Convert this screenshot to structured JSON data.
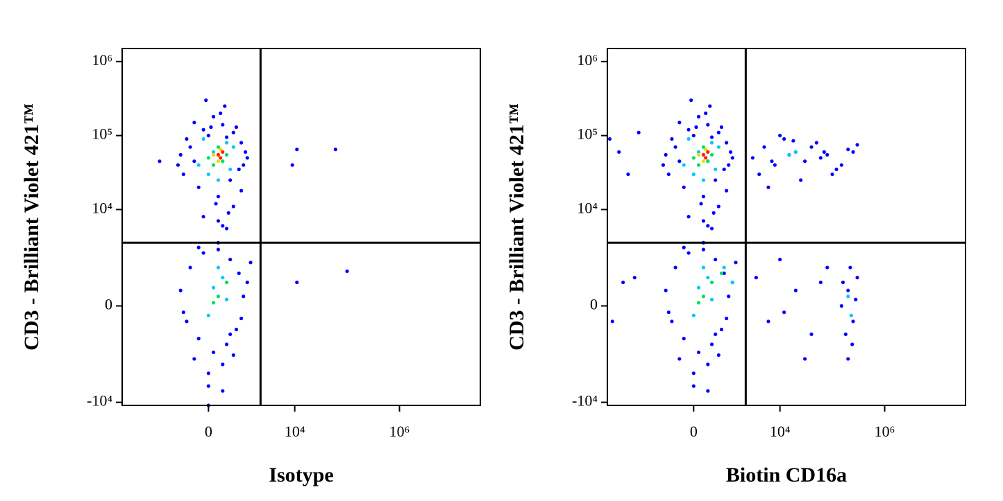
{
  "chart_data": [
    {
      "type": "scatter",
      "xlabel": "Isotype",
      "ylabel": "CD3 - Brilliant Violet 421™",
      "xscale": "biexponential",
      "yscale": "biexponential",
      "xlim": [
        -10000,
        35000000
      ],
      "ylim": [
        -11000,
        1500000
      ],
      "xticks": [
        0,
        {
          "value": 10000,
          "label": "10⁴"
        },
        {
          "value": 1000000,
          "label": "10⁶"
        }
      ],
      "yticks": [
        {
          "value": 1000000,
          "label": "10⁶"
        },
        {
          "value": 100000,
          "label": "10⁵"
        },
        {
          "value": 10000,
          "label": "10⁴"
        },
        0,
        {
          "value": -10000,
          "label": "-10⁴"
        }
      ],
      "gate": {
        "x": 2200,
        "y": 3500
      },
      "series": [
        {
          "color": "#0000ff",
          "x": [
            -800,
            -500,
            -300,
            -100,
            100,
            300,
            600,
            900,
            1200,
            -600,
            -200,
            200,
            500,
            800,
            1100,
            -400,
            0,
            400,
            700,
            1000,
            -700,
            -300,
            150,
            450,
            900,
            -100,
            300,
            600,
            200,
            400,
            50,
            250,
            -50,
            350,
            11000,
            9000,
            60000,
            -1900,
            11000,
            100000,
            -700,
            -400,
            -100,
            200,
            500,
            800,
            1200,
            -500,
            -200,
            100,
            400,
            700,
            1000,
            -600,
            -300,
            0,
            300,
            600,
            900,
            1400,
            -200,
            200,
            500,
            0,
            300,
            0
          ],
          "values": [
            40000,
            90000,
            150000,
            120000,
            180000,
            140000,
            110000,
            80000,
            50000,
            30000,
            20000,
            15000,
            25000,
            35000,
            60000,
            70000,
            100000,
            95000,
            130000,
            40000,
            55000,
            45000,
            12000,
            9000,
            18000,
            8000,
            6000,
            11000,
            7000,
            5500,
            130000,
            200000,
            300000,
            250000,
            65000,
            40000,
            65000,
            45000,
            800,
            1300,
            500,
            1500,
            2500,
            2800,
            2000,
            1200,
            800,
            -500,
            -1200,
            -2000,
            -1500,
            -800,
            300,
            -200,
            -2500,
            -4000,
            -3000,
            -2200,
            -400,
            1800,
            3000,
            3500,
            -1000,
            -6000,
            -7000,
            -11000
          ]
        },
        {
          "color": "#00c8ff",
          "x": [
            -200,
            100,
            400,
            0,
            300,
            600,
            -100,
            200,
            500,
            100,
            300,
            0,
            400,
            200
          ],
          "values": [
            40000,
            60000,
            80000,
            30000,
            45000,
            70000,
            90000,
            25000,
            35000,
            600,
            1000,
            -300,
            200,
            1500
          ]
        },
        {
          "color": "#00e060",
          "x": [
            0,
            200,
            400,
            100,
            300,
            200,
            400,
            100
          ],
          "values": [
            50000,
            70000,
            55000,
            40000,
            45000,
            300,
            800,
            100
          ]
        },
        {
          "color": "#e0e000",
          "x": [
            100,
            300,
            200,
            250
          ],
          "values": [
            55000,
            60000,
            45000,
            65000
          ]
        },
        {
          "color": "#ff2000",
          "x": [
            200,
            300,
            250
          ],
          "values": [
            55000,
            60000,
            50000
          ]
        }
      ]
    },
    {
      "type": "scatter",
      "xlabel": "Biotin CD16a",
      "ylabel": "CD3 - Brilliant Violet 421™",
      "xscale": "biexponential",
      "yscale": "biexponential",
      "xlim": [
        -10000,
        35000000
      ],
      "ylim": [
        -11000,
        1500000
      ],
      "xticks": [
        0,
        {
          "value": 10000,
          "label": "10⁴"
        },
        {
          "value": 1000000,
          "label": "10⁶"
        }
      ],
      "yticks": [
        {
          "value": 1000000,
          "label": "10⁶"
        },
        {
          "value": 100000,
          "label": "10⁵"
        },
        {
          "value": 10000,
          "label": "10⁴"
        },
        0,
        {
          "value": -10000,
          "label": "-10⁴"
        }
      ],
      "gate": {
        "x": 2200,
        "y": 3500
      },
      "series": [
        {
          "color": "#0000ff",
          "x": [
            -800,
            -500,
            -300,
            -100,
            100,
            300,
            600,
            900,
            1200,
            -600,
            -200,
            200,
            500,
            800,
            1100,
            -400,
            0,
            400,
            700,
            1000,
            -700,
            -300,
            150,
            450,
            900,
            -100,
            300,
            600,
            200,
            400,
            50,
            250,
            -50,
            350,
            -700,
            -400,
            -100,
            200,
            500,
            800,
            1200,
            -500,
            -200,
            100,
            400,
            700,
            1000,
            -600,
            -300,
            0,
            300,
            600,
            900,
            1400,
            -200,
            200,
            500,
            0,
            300,
            3000,
            5000,
            8000,
            12000,
            20000,
            30000,
            50000,
            80000,
            120000,
            200000,
            300000,
            4000,
            10000,
            25000,
            60000,
            150000,
            250000,
            7000,
            15000,
            40000,
            100000,
            6000,
            18000,
            70000,
            150000,
            200000,
            250000,
            300000,
            180000,
            220000,
            280000,
            160000,
            240000,
            200000,
            3500,
            6000,
            10000,
            20000,
            40000,
            80000,
            12000,
            30000,
            60000,
            -9000,
            -6000,
            -4000,
            -3000,
            -8000,
            -5000,
            -2500
          ],
          "values": [
            40000,
            90000,
            150000,
            120000,
            180000,
            140000,
            110000,
            80000,
            50000,
            30000,
            20000,
            15000,
            25000,
            35000,
            60000,
            70000,
            100000,
            95000,
            130000,
            40000,
            55000,
            45000,
            12000,
            9000,
            18000,
            8000,
            6000,
            11000,
            7000,
            5500,
            130000,
            200000,
            300000,
            250000,
            500,
            1500,
            2500,
            2800,
            2000,
            1200,
            800,
            -500,
            -1200,
            -2000,
            -1500,
            -800,
            300,
            -200,
            -2500,
            -4000,
            -3000,
            -2200,
            -400,
            1800,
            3000,
            3500,
            -1000,
            -6000,
            -7000,
            50000,
            70000,
            40000,
            90000,
            60000,
            45000,
            80000,
            55000,
            35000,
            65000,
            75000,
            30000,
            100000,
            25000,
            50000,
            40000,
            60000,
            45000,
            55000,
            70000,
            30000,
            20000,
            85000,
            60000,
            0,
            500,
            -500,
            1000,
            -1000,
            1500,
            200,
            800,
            -1500,
            -2500,
            1000,
            -500,
            2000,
            500,
            -1000,
            1500,
            -200,
            -2500,
            800,
            90000,
            60000,
            30000,
            1000,
            -500,
            800,
            110000
          ]
        },
        {
          "color": "#00c8ff",
          "x": [
            -200,
            100,
            400,
            0,
            300,
            600,
            -100,
            200,
            500,
            100,
            300,
            0,
            400,
            200,
            800,
            1200,
            200000,
            230000,
            15000,
            20000
          ],
          "values": [
            40000,
            60000,
            80000,
            30000,
            45000,
            70000,
            90000,
            25000,
            35000,
            600,
            1000,
            -300,
            200,
            1500,
            1500,
            800,
            300,
            -300,
            55000,
            60000
          ]
        },
        {
          "color": "#00e060",
          "x": [
            0,
            200,
            400,
            100,
            300,
            200,
            400,
            100,
            700
          ],
          "values": [
            50000,
            70000,
            55000,
            40000,
            45000,
            300,
            800,
            100,
            1200
          ]
        },
        {
          "color": "#e0e000",
          "x": [
            100,
            300,
            200,
            250
          ],
          "values": [
            55000,
            60000,
            45000,
            65000
          ]
        },
        {
          "color": "#ff2000",
          "x": [
            200,
            300,
            250
          ],
          "values": [
            55000,
            60000,
            50000
          ]
        }
      ]
    }
  ]
}
